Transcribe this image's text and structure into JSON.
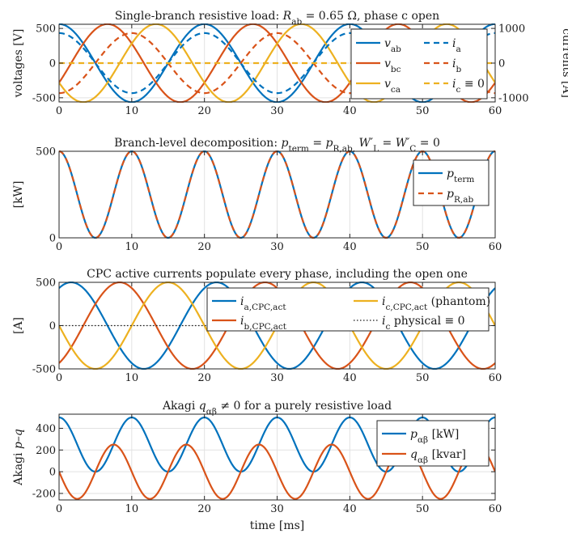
{
  "chart_data": [
    {
      "type": "line",
      "title": "Single-branch resistive load: R_ab = 0.65 Ω, phase c open",
      "xlabel": "",
      "ylabel": "voltages [V]",
      "ylabel_right": "currents [A]",
      "xlim": [
        0,
        60
      ],
      "ylim": [
        -560,
        560
      ],
      "ylim_right": [
        -1120,
        1120
      ],
      "xticks": [
        "0",
        "10",
        "20",
        "30",
        "40",
        "50",
        "60"
      ],
      "yticks": [
        "-500",
        "0",
        "500"
      ],
      "yticks_right": [
        "-1000",
        "0",
        "1000"
      ],
      "grid": true,
      "legend_position": "top-right",
      "series": [
        {
          "name": "v_ab",
          "axis": "left",
          "style": "solid",
          "color": "#0072BD",
          "amplitude": 563,
          "frequency_hz": 50,
          "phase_deg": 0
        },
        {
          "name": "v_bc",
          "axis": "left",
          "style": "solid",
          "color": "#D95319",
          "amplitude": 563,
          "frequency_hz": 50,
          "phase_deg": -120
        },
        {
          "name": "v_ca",
          "axis": "left",
          "style": "solid",
          "color": "#EDB120",
          "amplitude": 563,
          "frequency_hz": 50,
          "phase_deg": 120
        },
        {
          "name": "i_a",
          "axis": "right",
          "style": "dashed",
          "color": "#0072BD",
          "amplitude": 866,
          "frequency_hz": 50,
          "phase_deg": 0
        },
        {
          "name": "i_b",
          "axis": "right",
          "style": "dashed",
          "color": "#D95319",
          "amplitude": 866,
          "frequency_hz": 50,
          "phase_deg": 180
        },
        {
          "name": "i_c ≡ 0",
          "axis": "right",
          "style": "dashed",
          "color": "#EDB120",
          "amplitude": 0,
          "frequency_hz": 50,
          "phase_deg": 0
        }
      ]
    },
    {
      "type": "line",
      "title": "Branch-level decomposition: p_term = p_R,ab, W′_L = W′_C = 0",
      "xlabel": "",
      "ylabel": "[kW]",
      "xlim": [
        0,
        60
      ],
      "ylim": [
        0,
        500
      ],
      "xticks": [
        "0",
        "10",
        "20",
        "30",
        "40",
        "50",
        "60"
      ],
      "yticks": [
        "0",
        "500"
      ],
      "grid": true,
      "legend_position": "right",
      "series": [
        {
          "name": "p_term",
          "style": "solid",
          "color": "#0072BD",
          "formula": "250 + 250·cos(2ωt)"
        },
        {
          "name": "p_R,ab",
          "style": "dashed",
          "color": "#D95319",
          "formula": "250 + 250·cos(2ωt)"
        }
      ]
    },
    {
      "type": "line",
      "title": "CPC active currents populate every phase, including the open one",
      "xlabel": "",
      "ylabel": "[A]",
      "xlim": [
        0,
        60
      ],
      "ylim": [
        -500,
        500
      ],
      "xticks": [
        "0",
        "10",
        "20",
        "30",
        "40",
        "50",
        "60"
      ],
      "yticks": [
        "-500",
        "0",
        "500"
      ],
      "grid": true,
      "legend_position": "top-right",
      "series": [
        {
          "name": "i_a,CPC,act",
          "style": "solid",
          "color": "#0072BD",
          "amplitude": 500,
          "frequency_hz": 50,
          "phase_deg": -30
        },
        {
          "name": "i_b,CPC,act",
          "style": "solid",
          "color": "#D95319",
          "amplitude": 500,
          "frequency_hz": 50,
          "phase_deg": -150
        },
        {
          "name": "i_c,CPC,act (phantom)",
          "style": "solid",
          "color": "#EDB120",
          "amplitude": 500,
          "frequency_hz": 50,
          "phase_deg": 90
        },
        {
          "name": "i_c physical ≡ 0",
          "style": "dotted",
          "color": "#1a1a1a",
          "amplitude": 0,
          "frequency_hz": 50,
          "phase_deg": 0
        }
      ]
    },
    {
      "type": "line",
      "title": "Akagi q_αβ ≠ 0 for a purely resistive load",
      "xlabel": "time [ms]",
      "ylabel": "Akagi p–q",
      "xlim": [
        0,
        60
      ],
      "ylim": [
        -260,
        530
      ],
      "xticks": [
        "0",
        "10",
        "20",
        "30",
        "40",
        "50",
        "60"
      ],
      "yticks": [
        "-200",
        "0",
        "200",
        "400"
      ],
      "grid": true,
      "legend_position": "top-right",
      "series": [
        {
          "name": "p_αβ [kW]",
          "style": "solid",
          "color": "#0072BD",
          "formula": "250 + 250·cos(2ωt)"
        },
        {
          "name": "q_αβ [kvar]",
          "style": "solid",
          "color": "#D95319",
          "formula": "-250·sin(2ωt)"
        }
      ]
    }
  ]
}
